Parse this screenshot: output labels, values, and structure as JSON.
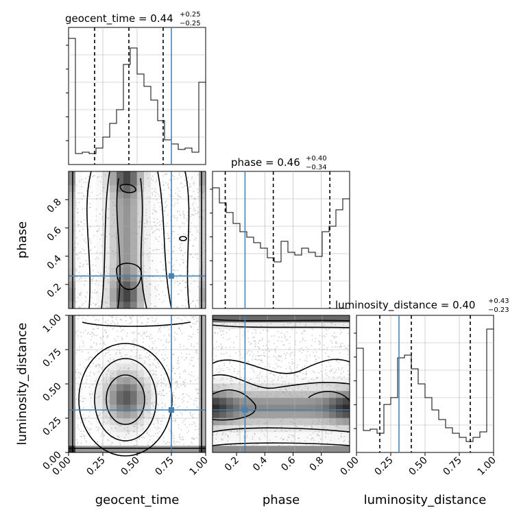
{
  "colors": {
    "truth": "#4682b4",
    "hist": "#000000",
    "grid": "#b0b0b0"
  },
  "titles": {
    "geocent_time": {
      "name": "geocent_time",
      "median": "0.44",
      "plus": "+0.25",
      "minus": "−0.25"
    },
    "phase": {
      "name": "phase",
      "median": "0.46",
      "plus": "+0.40",
      "minus": "−0.34"
    },
    "luminosity_distance": {
      "name": "luminosity_distance",
      "median": "0.40",
      "plus": "+0.43",
      "minus": "−0.23"
    }
  },
  "axis_labels": {
    "geocent_time": "geocent_time",
    "phase": "phase",
    "luminosity_distance": "luminosity_distance"
  },
  "ticks": {
    "geocent_time_x": [
      "0.00",
      "0.25",
      "0.50",
      "0.75",
      "1.00"
    ],
    "phase_x": [
      "0.2",
      "0.4",
      "0.6",
      "0.8"
    ],
    "luminosity_distance_x": [
      "0.00",
      "0.25",
      "0.50",
      "0.75",
      "1.00"
    ],
    "phase_y": [
      "0.2",
      "0.4",
      "0.6",
      "0.8"
    ],
    "luminosity_distance_y": [
      "0.00",
      "0.25",
      "0.50",
      "0.75",
      "1.00"
    ]
  },
  "chart_data": {
    "type": "corner",
    "parameters": [
      "geocent_time",
      "phase",
      "luminosity_distance"
    ],
    "truths": {
      "geocent_time": 0.75,
      "phase": 0.26,
      "luminosity_distance": 0.31
    },
    "ranges": {
      "geocent_time": [
        0,
        1
      ],
      "phase": [
        0.03,
        1.0
      ],
      "luminosity_distance": [
        0,
        1
      ]
    },
    "quantiles": {
      "geocent_time": [
        0.19,
        0.44,
        0.69
      ],
      "phase": [
        0.12,
        0.46,
        0.86
      ],
      "luminosity_distance": [
        0.17,
        0.4,
        0.83
      ]
    },
    "histograms": {
      "geocent_time": [
        0.92,
        0.08,
        0.09,
        0.08,
        0.12,
        0.2,
        0.3,
        0.4,
        0.73,
        0.85,
        0.66,
        0.57,
        0.47,
        0.32,
        0.18,
        0.15,
        0.11,
        0.12,
        0.09,
        0.6
      ],
      "phase": [
        0.88,
        0.77,
        0.7,
        0.62,
        0.56,
        0.52,
        0.48,
        0.44,
        0.37,
        0.34,
        0.49,
        0.41,
        0.39,
        0.44,
        0.41,
        0.38,
        0.56,
        0.6,
        0.72,
        0.8
      ],
      "luminosity_distance": [
        0.76,
        0.16,
        0.17,
        0.14,
        0.35,
        0.4,
        0.69,
        0.71,
        0.61,
        0.5,
        0.4,
        0.31,
        0.24,
        0.18,
        0.14,
        0.11,
        0.08,
        0.11,
        0.15,
        0.9
      ]
    },
    "bins": 20,
    "grid": true
  }
}
